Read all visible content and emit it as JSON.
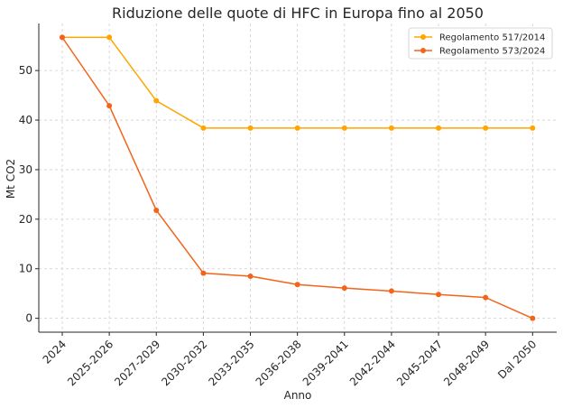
{
  "chart_data": {
    "type": "line",
    "title": "Riduzione delle quote di HFC in Europa fino al 2050",
    "xlabel": "Anno",
    "ylabel": "Mt CO2",
    "categories": [
      "2024",
      "2025-2026",
      "2027-2029",
      "2030-2032",
      "2033-2035",
      "2036-2038",
      "2039-2041",
      "2042-2044",
      "2045-2047",
      "2048-2049",
      "Dal 2050"
    ],
    "ylim": [
      -2.8,
      59.5
    ],
    "yticks": [
      0,
      10,
      20,
      30,
      40,
      50
    ],
    "grid": true,
    "legend_position": "top-right",
    "series": [
      {
        "name": "Regolamento 517/2014",
        "color": "#FFA500",
        "values": [
          56.7,
          56.7,
          43.9,
          38.4,
          38.4,
          38.4,
          38.4,
          38.4,
          38.4,
          38.4,
          38.4
        ]
      },
      {
        "name": "Regolamento 573/2024",
        "color": "#F26419",
        "values": [
          56.7,
          42.9,
          21.8,
          9.1,
          8.5,
          6.8,
          6.1,
          5.5,
          4.8,
          4.2,
          0
        ]
      }
    ]
  }
}
